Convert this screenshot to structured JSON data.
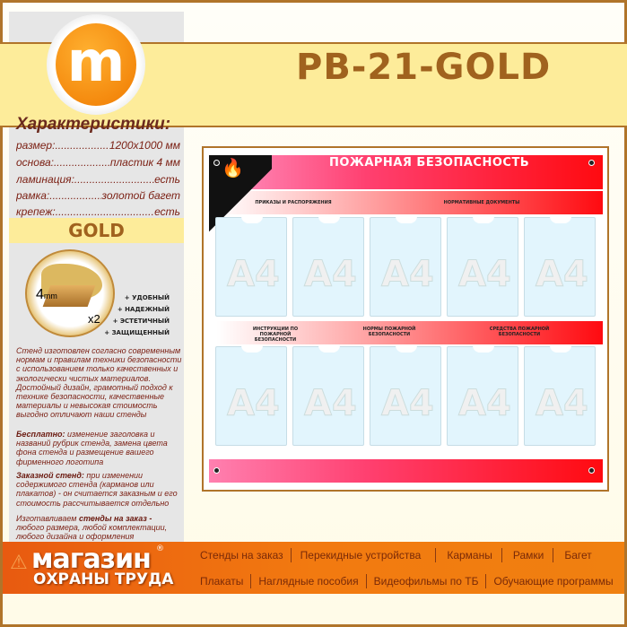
{
  "title": "PB-21-GOLD",
  "logo_letter": "m",
  "specs": {
    "heading": "Характеристики:",
    "rows": [
      {
        "label": "размер:",
        "value": "1200x1000  мм"
      },
      {
        "label": "основа:",
        "value": "пластик 4 мм"
      },
      {
        "label": "ламинация:",
        "value": "есть"
      },
      {
        "label": "рамка:",
        "value": "золотой багет"
      },
      {
        "label": "крепеж:",
        "value": "есть"
      }
    ]
  },
  "gold_label": "GOLD",
  "frame_image": {
    "thickness": "4",
    "unit": "mm",
    "count": "x2"
  },
  "features": [
    "+ УДОБНЫЙ",
    "+ НАДЕЖНЫЙ",
    "+ ЭСТЕТИЧНЫЙ",
    "+ ЗАЩИЩЕННЫЙ"
  ],
  "description": {
    "intro": "Стенд изготовлен согласно современным нормам и правилам техники безопасности с использованием только качественных и экологически чистых материалов. Достойный дизайн, грамотный подход к технике безопасности, качественные материалы и невысокая стоимость выгодно отличают наши стенды",
    "free_label": "Бесплатно:",
    "free_text": " изменение заголовка и названий рубрик стенда, замена цвета фона стенда и размещение вашего фирменного логотипа",
    "custom_label": "Заказной стенд:",
    "custom_text": " при изменении содержимого стенда (карманов или плакатов) - он считается заказным и его стоимость рассчитывается отдельно",
    "order_pre": "Изготавливаем ",
    "order_bold": "стенды на заказ -",
    "order_text": " любого размера, любой комплектации, любого дизайна и оформления"
  },
  "board": {
    "header": "ПОЖАРНАЯ БЕЗОПАСНОСТЬ",
    "row1_labels": [
      "ПРИКАЗЫ И РАСПОРЯЖЕНИЯ",
      "НОРМАТИВНЫЕ ДОКУМЕНТЫ"
    ],
    "row2_labels": [
      "ИНСТРУКЦИИ ПО ПОЖАРНОЙ БЕЗОПАСНОСТИ",
      "НОРМЫ ПОЖАРНОЙ БЕЗОПАСНОСТИ",
      "СРЕДСТВА ПОЖАРНОЙ БЕЗОПАСНОСТИ"
    ],
    "pocket_label": "A4"
  },
  "footer": {
    "brand_line1": "магазин",
    "brand_line2": "ОХРАНЫ ТРУДА",
    "registered": "®",
    "nav_row1": [
      "Стенды на заказ",
      "Перекидные устройства",
      "Карманы",
      "Рамки",
      "Багет"
    ],
    "nav_row2": [
      "Плакаты",
      "Наглядные пособия",
      "Видеофильмы по ТБ",
      "Обучающие программы"
    ]
  },
  "colors": {
    "brand_orange": "#f07a10",
    "gold_text": "#a0621e",
    "border": "#b0742a",
    "board_red": "#ff0a10"
  }
}
